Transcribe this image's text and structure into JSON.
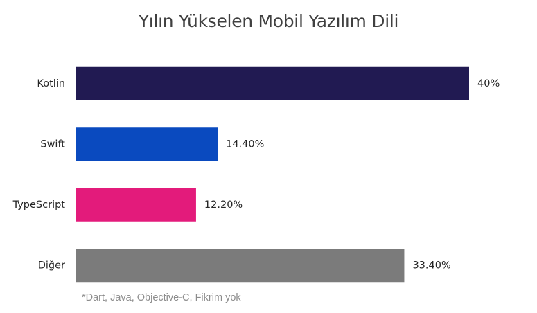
{
  "chart_data": {
    "type": "bar",
    "orientation": "horizontal",
    "title": "Yılın Yükselen Mobil Yazılım Dili",
    "categories": [
      "Kotlin",
      "Swift",
      "TypeScript",
      "Diğer"
    ],
    "values": [
      40,
      14.4,
      12.2,
      33.4
    ],
    "data_labels": [
      "40%",
      "14.40%",
      "12.20%",
      "33.40%"
    ],
    "colors": [
      "#211a52",
      "#0a4abf",
      "#e31b7b",
      "#7b7b7b"
    ],
    "xlim": [
      0,
      40
    ],
    "grid": false,
    "legend": "none",
    "footnote": "*Dart, Java, Objective-C, Fikrim yok"
  }
}
